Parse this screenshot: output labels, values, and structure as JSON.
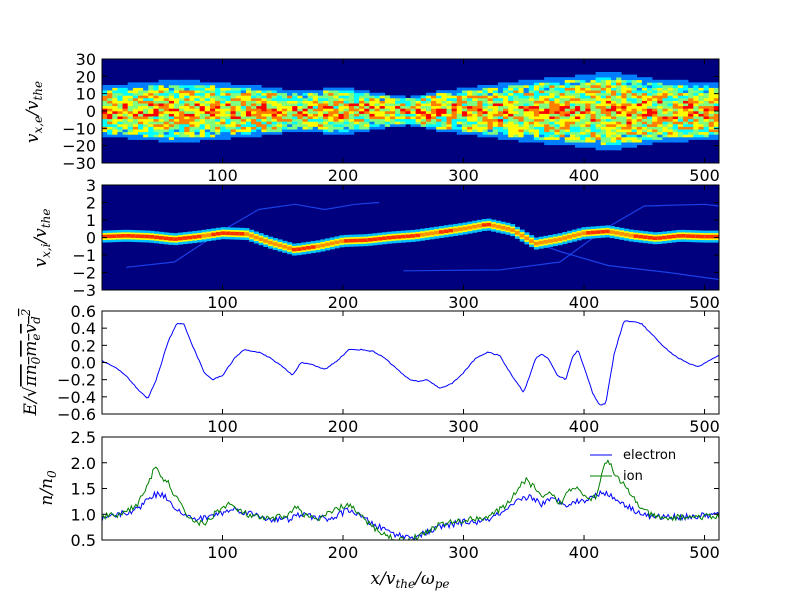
{
  "chart_data": [
    {
      "type": "heatmap",
      "panel": "electron-phase-space",
      "ylabel": "v_{x,e}/v_{the}",
      "xlim": [
        0,
        512
      ],
      "ylim": [
        -30,
        30
      ],
      "xticks": [
        100,
        200,
        300,
        400,
        500
      ],
      "xtick_labels": [
        "100",
        "200",
        "300",
        "400",
        "500"
      ],
      "yticks": [
        -30,
        -20,
        -10,
        0,
        10,
        20,
        30
      ],
      "ytick_labels": [
        "−30",
        "−20",
        "−10",
        "0",
        "10",
        "20",
        "30"
      ],
      "envelope_x": [
        0,
        30,
        60,
        100,
        140,
        160,
        200,
        240,
        255,
        280,
        320,
        360,
        400,
        420,
        460,
        512
      ],
      "envelope_half_width": [
        13,
        14,
        16,
        14,
        12,
        10,
        12,
        8,
        7,
        10,
        13,
        16,
        18,
        20,
        16,
        14
      ],
      "colormap": [
        "#00007f",
        "#0000ff",
        "#007fff",
        "#00ffff",
        "#7fff7f",
        "#ffff00",
        "#ff7f00",
        "#ff0000",
        "#7f0000"
      ]
    },
    {
      "type": "heatmap",
      "panel": "ion-phase-space",
      "ylabel": "v_{x,i}/v_{the}",
      "xlim": [
        0,
        512
      ],
      "ylim": [
        -3,
        3
      ],
      "xticks": [
        100,
        200,
        300,
        400,
        500
      ],
      "xtick_labels": [
        "100",
        "200",
        "300",
        "400",
        "500"
      ],
      "yticks": [
        -3,
        -2,
        -1,
        0,
        1,
        2,
        3
      ],
      "ytick_labels": [
        "−3",
        "−2",
        "−1",
        "0",
        "1",
        "2",
        "3"
      ],
      "core_x": [
        0,
        20,
        40,
        60,
        80,
        100,
        120,
        140,
        160,
        180,
        200,
        220,
        240,
        260,
        280,
        300,
        320,
        340,
        360,
        380,
        400,
        420,
        440,
        460,
        480,
        500,
        512
      ],
      "core_v": [
        0.05,
        0.1,
        0.05,
        -0.1,
        0.05,
        0.25,
        0.2,
        -0.3,
        -0.7,
        -0.5,
        -0.2,
        -0.15,
        0.0,
        0.1,
        0.3,
        0.5,
        0.75,
        0.45,
        -0.35,
        -0.1,
        0.25,
        0.35,
        0.1,
        -0.05,
        0.1,
        0.05,
        0.05
      ]
    },
    {
      "type": "line",
      "panel": "electric-field",
      "ylabel": "E/sqrt(pi n_0 m_e v_d^2)",
      "xlim": [
        0,
        512
      ],
      "ylim": [
        -0.6,
        0.6
      ],
      "xticks": [
        100,
        200,
        300,
        400,
        500
      ],
      "xtick_labels": [
        "100",
        "200",
        "300",
        "400",
        "500"
      ],
      "yticks": [
        -0.6,
        -0.4,
        -0.2,
        0.0,
        0.2,
        0.4,
        0.6
      ],
      "ytick_labels": [
        "−0.6",
        "−0.4",
        "−0.2",
        "0.0",
        "0.2",
        "0.4",
        "0.6"
      ],
      "series": [
        {
          "name": "E",
          "color": "#0000ff",
          "x": [
            0,
            10,
            20,
            30,
            38,
            45,
            55,
            62,
            68,
            75,
            85,
            92,
            100,
            110,
            118,
            130,
            140,
            150,
            158,
            165,
            175,
            185,
            195,
            205,
            215,
            225,
            235,
            245,
            255,
            262,
            270,
            280,
            290,
            300,
            310,
            320,
            330,
            340,
            350,
            360,
            365,
            370,
            378,
            385,
            390,
            395,
            400,
            407,
            413,
            418,
            425,
            433,
            440,
            448,
            455,
            465,
            475,
            485,
            495,
            505,
            512
          ],
          "y": [
            0.02,
            -0.05,
            -0.15,
            -0.32,
            -0.42,
            -0.2,
            0.25,
            0.45,
            0.45,
            0.2,
            -0.12,
            -0.2,
            -0.15,
            0.05,
            0.15,
            0.12,
            0.05,
            -0.05,
            -0.15,
            0.0,
            -0.03,
            -0.08,
            0.02,
            0.15,
            0.15,
            0.13,
            0.05,
            -0.08,
            -0.2,
            -0.22,
            -0.2,
            -0.3,
            -0.25,
            -0.12,
            0.05,
            0.12,
            0.08,
            -0.15,
            -0.35,
            0.05,
            0.1,
            0.05,
            -0.15,
            -0.2,
            0.05,
            0.15,
            -0.05,
            -0.35,
            -0.5,
            -0.48,
            0.1,
            0.48,
            0.48,
            0.45,
            0.35,
            0.2,
            0.08,
            0.0,
            -0.05,
            0.03,
            0.08
          ]
        }
      ]
    },
    {
      "type": "line",
      "panel": "density",
      "ylabel": "n/n_0",
      "xlabel": "x/v_{the}/ω_{pe}",
      "xlim": [
        0,
        512
      ],
      "ylim": [
        0.5,
        2.5
      ],
      "xticks": [
        100,
        200,
        300,
        400,
        500
      ],
      "xtick_labels": [
        "100",
        "200",
        "300",
        "400",
        "500"
      ],
      "yticks": [
        0.5,
        1.0,
        1.5,
        2.0,
        2.5
      ],
      "ytick_labels": [
        "0.5",
        "1.0",
        "1.5",
        "2.0",
        "2.5"
      ],
      "legend": {
        "position": "top-right",
        "entries": [
          "electron",
          "ion"
        ]
      },
      "series": [
        {
          "name": "electron",
          "color": "#0000ff",
          "x": [
            0,
            15,
            30,
            40,
            48,
            55,
            62,
            70,
            80,
            95,
            110,
            125,
            140,
            155,
            165,
            175,
            190,
            205,
            215,
            225,
            235,
            245,
            255,
            265,
            280,
            300,
            315,
            325,
            335,
            345,
            355,
            365,
            375,
            385,
            395,
            405,
            415,
            422,
            430,
            440,
            455,
            470,
            490,
            512
          ],
          "y": [
            0.9,
            1.0,
            1.1,
            1.35,
            1.4,
            1.3,
            1.1,
            0.95,
            0.9,
            1.0,
            1.1,
            1.0,
            0.9,
            0.9,
            1.0,
            0.95,
            0.9,
            1.1,
            0.95,
            0.8,
            0.7,
            0.6,
            0.55,
            0.6,
            0.75,
            0.85,
            0.85,
            0.95,
            1.05,
            1.25,
            1.35,
            1.2,
            1.3,
            1.2,
            1.25,
            1.3,
            1.45,
            1.35,
            1.25,
            1.1,
            0.95,
            0.95,
            0.95,
            1.0
          ]
        },
        {
          "name": "ion",
          "color": "#008000",
          "x": [
            0,
            15,
            30,
            38,
            44,
            48,
            55,
            62,
            70,
            78,
            85,
            95,
            105,
            115,
            125,
            140,
            155,
            162,
            170,
            180,
            195,
            205,
            215,
            225,
            235,
            245,
            255,
            265,
            280,
            300,
            320,
            335,
            345,
            352,
            358,
            365,
            372,
            380,
            387,
            395,
            403,
            410,
            416,
            420,
            425,
            432,
            440,
            450,
            465,
            480,
            495,
            512
          ],
          "y": [
            0.95,
            1.0,
            1.2,
            1.6,
            1.9,
            1.75,
            1.6,
            1.3,
            1.0,
            0.85,
            0.8,
            1.05,
            1.2,
            1.05,
            0.95,
            0.9,
            1.0,
            1.15,
            0.95,
            0.9,
            1.1,
            1.2,
            0.95,
            0.75,
            0.6,
            0.5,
            0.5,
            0.6,
            0.8,
            0.88,
            0.95,
            1.15,
            1.5,
            1.65,
            1.55,
            1.3,
            1.4,
            1.2,
            1.45,
            1.55,
            1.3,
            1.35,
            1.9,
            2.1,
            1.75,
            1.6,
            1.35,
            1.05,
            0.9,
            0.95,
            0.95,
            0.95
          ]
        }
      ]
    }
  ]
}
